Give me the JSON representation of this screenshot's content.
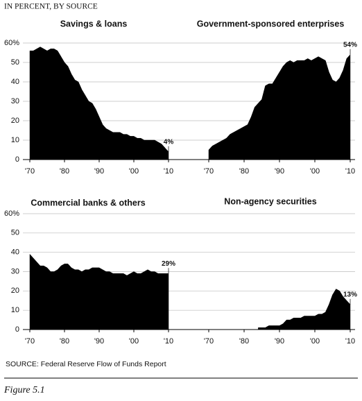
{
  "header": "IN PERCENT, BY SOURCE",
  "source": "SOURCE: Federal Reserve Flow of Funds Report",
  "caption": "Figure 5.1",
  "chart_data": [
    {
      "type": "area",
      "title": "Savings & loans",
      "color": "#000000",
      "x": [
        1970,
        1971,
        1972,
        1973,
        1974,
        1975,
        1976,
        1977,
        1978,
        1979,
        1980,
        1981,
        1982,
        1983,
        1984,
        1985,
        1986,
        1987,
        1988,
        1989,
        1990,
        1991,
        1992,
        1993,
        1994,
        1995,
        1996,
        1997,
        1998,
        1999,
        2000,
        2001,
        2002,
        2003,
        2004,
        2005,
        2006,
        2007,
        2008,
        2009,
        2010
      ],
      "values": [
        56,
        56,
        57,
        58,
        57,
        56,
        57,
        57,
        56,
        53,
        50,
        48,
        44,
        41,
        40,
        36,
        33,
        30,
        29,
        26,
        22,
        18,
        16,
        15,
        14,
        14,
        14,
        13,
        13,
        12,
        12,
        11,
        11,
        10,
        10,
        10,
        10,
        9,
        8,
        6,
        4
      ],
      "xlim": [
        1970,
        2010
      ],
      "xticks": [
        {
          "value": 1970,
          "label": "'70"
        },
        {
          "value": 1980,
          "label": "'80"
        },
        {
          "value": 1990,
          "label": "'90"
        },
        {
          "value": 2000,
          "label": "'00"
        },
        {
          "value": 2010,
          "label": "'10"
        }
      ],
      "ylim": [
        0,
        60
      ],
      "yticks": [
        0,
        10,
        20,
        30,
        40,
        50,
        {
          "value": 60,
          "label": "60%"
        }
      ],
      "grid": true,
      "annotation": {
        "x": 2010,
        "y": 4,
        "label": "4%"
      }
    },
    {
      "type": "area",
      "title": "Government-sponsored enterprises",
      "color": "#000000",
      "x": [
        1970,
        1971,
        1972,
        1973,
        1974,
        1975,
        1976,
        1977,
        1978,
        1979,
        1980,
        1981,
        1982,
        1983,
        1984,
        1985,
        1986,
        1987,
        1988,
        1989,
        1990,
        1991,
        1992,
        1993,
        1994,
        1995,
        1996,
        1997,
        1998,
        1999,
        2000,
        2001,
        2002,
        2003,
        2004,
        2005,
        2006,
        2007,
        2008,
        2009,
        2010
      ],
      "values": [
        5,
        7,
        8,
        9,
        10,
        11,
        13,
        14,
        15,
        16,
        17,
        18,
        22,
        27,
        29,
        31,
        38,
        39,
        39,
        42,
        45,
        48,
        50,
        51,
        50,
        51,
        51,
        51,
        52,
        51,
        52,
        53,
        52,
        51,
        45,
        41,
        40,
        42,
        46,
        52,
        54
      ],
      "xlim": [
        1970,
        2010
      ],
      "xticks": [
        {
          "value": 1970,
          "label": "'70"
        },
        {
          "value": 1980,
          "label": "'80"
        },
        {
          "value": 1990,
          "label": "'90"
        },
        {
          "value": 2000,
          "label": "'00"
        },
        {
          "value": 2010,
          "label": "'10"
        }
      ],
      "ylim": [
        0,
        60
      ],
      "annotation": {
        "x": 2010,
        "y": 54,
        "label": "54%"
      }
    },
    {
      "type": "area",
      "title": "Commercial banks & others",
      "color": "#000000",
      "x": [
        1970,
        1971,
        1972,
        1973,
        1974,
        1975,
        1976,
        1977,
        1978,
        1979,
        1980,
        1981,
        1982,
        1983,
        1984,
        1985,
        1986,
        1987,
        1988,
        1989,
        1990,
        1991,
        1992,
        1993,
        1994,
        1995,
        1996,
        1997,
        1998,
        1999,
        2000,
        2001,
        2002,
        2003,
        2004,
        2005,
        2006,
        2007,
        2008,
        2009,
        2010
      ],
      "values": [
        39,
        37,
        35,
        33,
        33,
        32,
        30,
        30,
        31,
        33,
        34,
        34,
        32,
        31,
        31,
        30,
        31,
        31,
        32,
        32,
        32,
        31,
        30,
        30,
        29,
        29,
        29,
        29,
        28,
        29,
        30,
        29,
        29,
        30,
        31,
        30,
        30,
        29,
        29,
        29,
        29
      ],
      "xlim": [
        1970,
        2010
      ],
      "xticks": [
        {
          "value": 1970,
          "label": "'70"
        },
        {
          "value": 1980,
          "label": "'80"
        },
        {
          "value": 1990,
          "label": "'90"
        },
        {
          "value": 2000,
          "label": "'00"
        },
        {
          "value": 2010,
          "label": "'10"
        }
      ],
      "ylim": [
        0,
        60
      ],
      "yticks": [
        0,
        10,
        20,
        30,
        40,
        50,
        {
          "value": 60,
          "label": "60%"
        }
      ],
      "grid": true,
      "annotation": {
        "x": 2010,
        "y": 29,
        "label": "29%"
      }
    },
    {
      "type": "area",
      "title": "Non-agency securities",
      "color": "#000000",
      "x": [
        1984,
        1985,
        1986,
        1987,
        1988,
        1989,
        1990,
        1991,
        1992,
        1993,
        1994,
        1995,
        1996,
        1997,
        1998,
        1999,
        2000,
        2001,
        2002,
        2003,
        2004,
        2005,
        2006,
        2007,
        2008,
        2009,
        2010
      ],
      "values": [
        1,
        1,
        1,
        2,
        2,
        2,
        2,
        3,
        5,
        5,
        6,
        6,
        6,
        7,
        7,
        7,
        7,
        8,
        8,
        9,
        13,
        18,
        21,
        20,
        17,
        15,
        13
      ],
      "xlim": [
        1970,
        2010
      ],
      "xticks": [
        {
          "value": 1970,
          "label": "'70"
        },
        {
          "value": 1980,
          "label": "'80"
        },
        {
          "value": 1990,
          "label": "'90"
        },
        {
          "value": 2000,
          "label": "'00"
        },
        {
          "value": 2010,
          "label": "'10"
        }
      ],
      "ylim": [
        0,
        60
      ],
      "annotation": {
        "x": 2010,
        "y": 13,
        "label": "13%"
      }
    }
  ]
}
